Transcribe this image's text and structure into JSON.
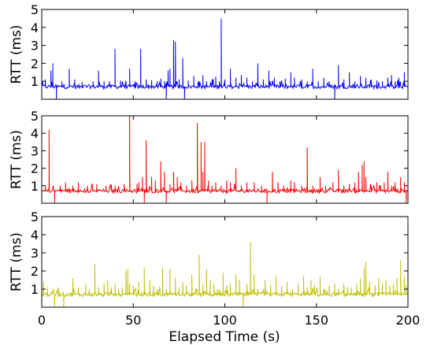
{
  "chart_data": {
    "type": "line",
    "xlabel": "Elapsed Time (s)",
    "xlim": [
      0,
      200
    ],
    "xticks": [
      0,
      50,
      100,
      150,
      200
    ],
    "panels": [
      {
        "ylabel": "RTT (ms)",
        "ylim": [
          0,
          5
        ],
        "yticks": [
          1,
          2,
          3,
          4,
          5
        ],
        "color": "#0000ff",
        "baseline": 0.7,
        "spikes": [
          [
            2,
            1.1
          ],
          [
            5,
            1.6
          ],
          [
            6,
            2.0
          ],
          [
            8,
            0.0
          ],
          [
            11,
            1.0
          ],
          [
            15,
            1.7
          ],
          [
            18,
            1.1
          ],
          [
            22,
            0.95
          ],
          [
            28,
            1.0
          ],
          [
            31,
            1.6
          ],
          [
            34,
            1.0
          ],
          [
            37,
            1.0
          ],
          [
            40,
            2.8
          ],
          [
            43,
            1.05
          ],
          [
            46,
            1.0
          ],
          [
            48,
            1.7
          ],
          [
            51,
            1.0
          ],
          [
            54,
            2.8
          ],
          [
            57,
            1.1
          ],
          [
            60,
            1.05
          ],
          [
            63,
            1.0
          ],
          [
            65,
            1.15
          ],
          [
            67,
            1.0
          ],
          [
            68,
            0.0
          ],
          [
            69,
            1.6
          ],
          [
            70,
            1.7
          ],
          [
            72,
            3.3
          ],
          [
            73,
            3.2
          ],
          [
            75,
            1.1
          ],
          [
            77,
            2.3
          ],
          [
            78,
            0.0
          ],
          [
            80,
            1.05
          ],
          [
            83,
            1.3
          ],
          [
            86,
            1.0
          ],
          [
            88,
            1.35
          ],
          [
            90,
            1.0
          ],
          [
            93,
            1.1
          ],
          [
            95,
            1.25
          ],
          [
            97,
            1.0
          ],
          [
            98,
            4.5
          ],
          [
            100,
            1.1
          ],
          [
            103,
            1.7
          ],
          [
            106,
            1.2
          ],
          [
            109,
            1.35
          ],
          [
            112,
            1.2
          ],
          [
            115,
            1.0
          ],
          [
            118,
            2.0
          ],
          [
            121,
            1.1
          ],
          [
            124,
            1.6
          ],
          [
            127,
            1.2
          ],
          [
            130,
            1.0
          ],
          [
            133,
            1.15
          ],
          [
            136,
            1.5
          ],
          [
            138,
            1.2
          ],
          [
            142,
            1.1
          ],
          [
            145,
            1.0
          ],
          [
            148,
            1.7
          ],
          [
            151,
            1.0
          ],
          [
            154,
            1.2
          ],
          [
            157,
            1.0
          ],
          [
            160,
            0.0
          ],
          [
            162,
            1.9
          ],
          [
            165,
            1.1
          ],
          [
            168,
            1.5
          ],
          [
            171,
            1.0
          ],
          [
            174,
            1.3
          ],
          [
            177,
            1.2
          ],
          [
            180,
            1.1
          ],
          [
            183,
            1.05
          ],
          [
            186,
            1.0
          ],
          [
            189,
            1.2
          ],
          [
            191,
            1.35
          ],
          [
            193,
            1.0
          ],
          [
            195,
            1.2
          ],
          [
            198,
            1.5
          ]
        ]
      },
      {
        "ylabel": "RTT (ms)",
        "ylim": [
          0,
          5
        ],
        "yticks": [
          1,
          2,
          3,
          4,
          5
        ],
        "color": "#ff0000",
        "baseline": 0.7,
        "spikes": [
          [
            2,
            1.0
          ],
          [
            4,
            4.2
          ],
          [
            7,
            0.0
          ],
          [
            10,
            1.0
          ],
          [
            13,
            1.2
          ],
          [
            17,
            1.0
          ],
          [
            20,
            1.2
          ],
          [
            25,
            1.0
          ],
          [
            30,
            1.1
          ],
          [
            35,
            1.0
          ],
          [
            38,
            1.1
          ],
          [
            40,
            1.0
          ],
          [
            45,
            1.1
          ],
          [
            48,
            5.0
          ],
          [
            52,
            1.1
          ],
          [
            53,
            1.2
          ],
          [
            55,
            1.5
          ],
          [
            56,
            0.0
          ],
          [
            57,
            3.6
          ],
          [
            60,
            1.5
          ],
          [
            62,
            1.3
          ],
          [
            65,
            2.4
          ],
          [
            67,
            1.8
          ],
          [
            68,
            0.0
          ],
          [
            70,
            1.1
          ],
          [
            72,
            1.8
          ],
          [
            74,
            1.5
          ],
          [
            76,
            1.2
          ],
          [
            79,
            1.0
          ],
          [
            82,
            1.3
          ],
          [
            85,
            4.6
          ],
          [
            87,
            3.5
          ],
          [
            88,
            1.8
          ],
          [
            89,
            3.5
          ],
          [
            91,
            1.3
          ],
          [
            93,
            1.0
          ],
          [
            95,
            1.2
          ],
          [
            98,
            1.0
          ],
          [
            101,
            1.3
          ],
          [
            103,
            1.2
          ],
          [
            106,
            2.0
          ],
          [
            109,
            1.0
          ],
          [
            112,
            1.2
          ],
          [
            116,
            1.2
          ],
          [
            120,
            1.0
          ],
          [
            123,
            0.0
          ],
          [
            126,
            1.8
          ],
          [
            129,
            1.2
          ],
          [
            132,
            1.0
          ],
          [
            136,
            1.3
          ],
          [
            138,
            1.2
          ],
          [
            142,
            1.0
          ],
          [
            145,
            3.2
          ],
          [
            148,
            1.0
          ],
          [
            152,
            1.5
          ],
          [
            155,
            1.0
          ],
          [
            159,
            1.2
          ],
          [
            162,
            1.9
          ],
          [
            165,
            1.0
          ],
          [
            168,
            1.1
          ],
          [
            171,
            1.2
          ],
          [
            173,
            1.8
          ],
          [
            175,
            2.2
          ],
          [
            176,
            2.4
          ],
          [
            177,
            1.5
          ],
          [
            180,
            1.0
          ],
          [
            183,
            1.2
          ],
          [
            185,
            1.0
          ],
          [
            187,
            1.2
          ],
          [
            189,
            1.8
          ],
          [
            191,
            1.0
          ],
          [
            193,
            1.2
          ],
          [
            196,
            1.5
          ],
          [
            198,
            1.2
          ],
          [
            199,
            0.0
          ]
        ]
      },
      {
        "ylabel": "RTT (ms)",
        "ylim": [
          0,
          5
        ],
        "yticks": [
          1,
          2,
          3,
          4,
          5
        ],
        "color": "#bfbf00",
        "baseline": 0.7,
        "spikes": [
          [
            1,
            1.4
          ],
          [
            3,
            1.1
          ],
          [
            7,
            0.0
          ],
          [
            9,
            1.1
          ],
          [
            12,
            0.0
          ],
          [
            17,
            1.6
          ],
          [
            20,
            1.1
          ],
          [
            24,
            1.3
          ],
          [
            26,
            1.0
          ],
          [
            29,
            2.4
          ],
          [
            31,
            1.1
          ],
          [
            34,
            1.3
          ],
          [
            36,
            1.5
          ],
          [
            38,
            1.1
          ],
          [
            40,
            1.3
          ],
          [
            42,
            1.0
          ],
          [
            44,
            1.1
          ],
          [
            46,
            2.0
          ],
          [
            47,
            2.1
          ],
          [
            48,
            1.3
          ],
          [
            50,
            1.2
          ],
          [
            53,
            1.4
          ],
          [
            56,
            2.2
          ],
          [
            59,
            1.5
          ],
          [
            61,
            1.2
          ],
          [
            63,
            1.0
          ],
          [
            66,
            2.2
          ],
          [
            68,
            1.0
          ],
          [
            70,
            2.1
          ],
          [
            73,
            1.6
          ],
          [
            75,
            1.1
          ],
          [
            77,
            1.4
          ],
          [
            79,
            1.2
          ],
          [
            82,
            1.8
          ],
          [
            84,
            1.0
          ],
          [
            86,
            2.9
          ],
          [
            88,
            1.3
          ],
          [
            90,
            2.1
          ],
          [
            92,
            1.5
          ],
          [
            94,
            1.3
          ],
          [
            96,
            1.0
          ],
          [
            99,
            1.9
          ],
          [
            101,
            1.2
          ],
          [
            103,
            1.3
          ],
          [
            106,
            1.8
          ],
          [
            108,
            1.5
          ],
          [
            110,
            0.0
          ],
          [
            112,
            1.3
          ],
          [
            114,
            3.6
          ],
          [
            116,
            1.8
          ],
          [
            118,
            1.0
          ],
          [
            122,
            1.5
          ],
          [
            125,
            1.2
          ],
          [
            128,
            1.7
          ],
          [
            131,
            1.2
          ],
          [
            134,
            1.4
          ],
          [
            137,
            1.0
          ],
          [
            140,
            1.3
          ],
          [
            143,
            1.7
          ],
          [
            145,
            1.1
          ],
          [
            147,
            1.5
          ],
          [
            149,
            1.2
          ],
          [
            152,
            1.7
          ],
          [
            154,
            1.0
          ],
          [
            157,
            1.2
          ],
          [
            160,
            1.3
          ],
          [
            162,
            1.0
          ],
          [
            165,
            1.3
          ],
          [
            167,
            1.1
          ],
          [
            169,
            1.1
          ],
          [
            172,
            1.3
          ],
          [
            174,
            1.6
          ],
          [
            176,
            2.2
          ],
          [
            177,
            2.5
          ],
          [
            179,
            1.4
          ],
          [
            182,
            1.2
          ],
          [
            184,
            1.6
          ],
          [
            186,
            1.3
          ],
          [
            188,
            1.5
          ],
          [
            190,
            1.2
          ],
          [
            192,
            1.3
          ],
          [
            194,
            1.6
          ],
          [
            196,
            2.6
          ],
          [
            198,
            1.7
          ],
          [
            199,
            1.2
          ]
        ]
      }
    ]
  }
}
